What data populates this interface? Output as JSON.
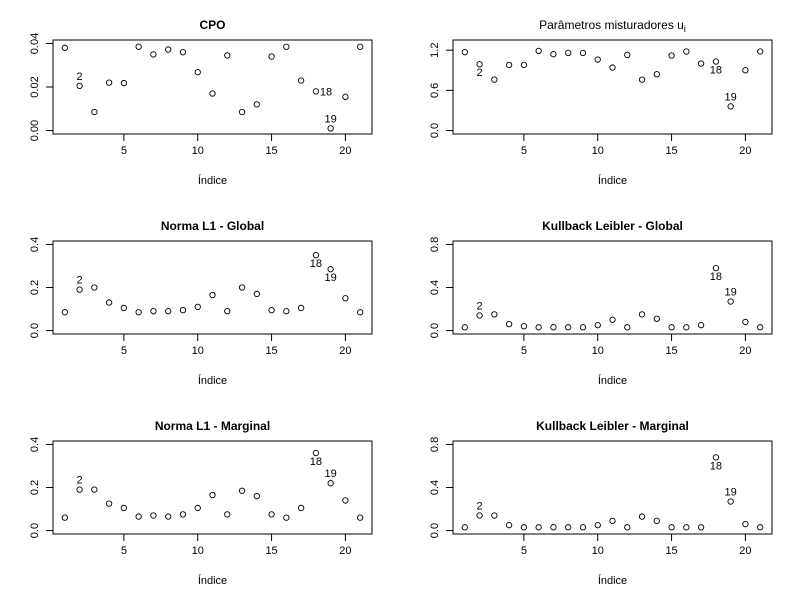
{
  "chart_data": [
    {
      "type": "scatter",
      "title": "CPO",
      "title_bold": true,
      "xlabel": "Índice",
      "ylabel": "",
      "xlim": [
        1,
        21
      ],
      "ylim": [
        0,
        0.04
      ],
      "xticks": [
        5,
        10,
        15,
        20
      ],
      "yticks": [
        0.0,
        0.02,
        0.04
      ],
      "ytick_labels": [
        "0.00",
        "0.02",
        "0.04"
      ],
      "x": [
        1,
        2,
        3,
        4,
        5,
        6,
        7,
        8,
        9,
        10,
        11,
        12,
        13,
        14,
        15,
        16,
        17,
        18,
        19,
        20,
        21
      ],
      "y": [
        0.038,
        0.0205,
        0.0085,
        0.022,
        0.0218,
        0.0385,
        0.035,
        0.0372,
        0.036,
        0.0268,
        0.017,
        0.0345,
        0.0085,
        0.012,
        0.034,
        0.0385,
        0.023,
        0.018,
        0.001,
        0.0155,
        0.0385
      ],
      "annotations": [
        {
          "text": "2",
          "x": 2,
          "pos": "above"
        },
        {
          "text": "18",
          "x": 18,
          "pos": "right"
        },
        {
          "text": "19",
          "x": 19,
          "pos": "above"
        }
      ]
    },
    {
      "type": "scatter",
      "title": "Parâmetros misturadores u",
      "title_subscript": "i",
      "title_bold": false,
      "xlabel": "Índice",
      "ylabel": "",
      "xlim": [
        1,
        21
      ],
      "ylim": [
        0,
        1.3
      ],
      "xticks": [
        5,
        10,
        15,
        20
      ],
      "yticks": [
        0.0,
        0.6,
        1.2
      ],
      "ytick_labels": [
        "0.0",
        "0.6",
        "1.2"
      ],
      "x": [
        1,
        2,
        3,
        4,
        5,
        6,
        7,
        8,
        9,
        10,
        11,
        12,
        13,
        14,
        15,
        16,
        17,
        18,
        19,
        20,
        21
      ],
      "y": [
        1.17,
        0.99,
        0.76,
        0.98,
        0.98,
        1.19,
        1.14,
        1.16,
        1.16,
        1.06,
        0.94,
        1.13,
        0.76,
        0.84,
        1.12,
        1.18,
        1.0,
        1.03,
        0.36,
        0.9,
        1.18
      ],
      "annotations": [
        {
          "text": "2",
          "x": 2,
          "pos": "below"
        },
        {
          "text": "18",
          "x": 18,
          "pos": "below"
        },
        {
          "text": "19",
          "x": 19,
          "pos": "above"
        }
      ]
    },
    {
      "type": "scatter",
      "title": "Norma L1 - Global",
      "title_bold": true,
      "xlabel": "Índice",
      "ylabel": "",
      "xlim": [
        1,
        21
      ],
      "ylim": [
        0,
        0.4
      ],
      "xticks": [
        5,
        10,
        15,
        20
      ],
      "yticks": [
        0.0,
        0.2,
        0.4
      ],
      "ytick_labels": [
        "0.0",
        "0.2",
        "0.4"
      ],
      "x": [
        1,
        2,
        3,
        4,
        5,
        6,
        7,
        8,
        9,
        10,
        11,
        12,
        13,
        14,
        15,
        16,
        17,
        18,
        19,
        20,
        21
      ],
      "y": [
        0.085,
        0.19,
        0.2,
        0.13,
        0.105,
        0.085,
        0.09,
        0.09,
        0.095,
        0.11,
        0.165,
        0.09,
        0.2,
        0.17,
        0.095,
        0.09,
        0.105,
        0.35,
        0.285,
        0.15,
        0.085
      ],
      "annotations": [
        {
          "text": "2",
          "x": 2,
          "pos": "above"
        },
        {
          "text": "18",
          "x": 18,
          "pos": "below"
        },
        {
          "text": "19",
          "x": 19,
          "pos": "below"
        }
      ]
    },
    {
      "type": "scatter",
      "title": "Kullback Leibler - Global",
      "title_bold": true,
      "xlabel": "Índice",
      "ylabel": "",
      "xlim": [
        1,
        21
      ],
      "ylim": [
        0,
        0.8
      ],
      "xticks": [
        5,
        10,
        15,
        20
      ],
      "yticks": [
        0.0,
        0.4,
        0.8
      ],
      "ytick_labels": [
        "0.0",
        "0.4",
        "0.8"
      ],
      "x": [
        1,
        2,
        3,
        4,
        5,
        6,
        7,
        8,
        9,
        10,
        11,
        12,
        13,
        14,
        15,
        16,
        17,
        18,
        19,
        20,
        21
      ],
      "y": [
        0.03,
        0.14,
        0.15,
        0.06,
        0.04,
        0.03,
        0.03,
        0.03,
        0.03,
        0.05,
        0.1,
        0.03,
        0.15,
        0.11,
        0.03,
        0.03,
        0.05,
        0.58,
        0.27,
        0.08,
        0.03
      ],
      "annotations": [
        {
          "text": "2",
          "x": 2,
          "pos": "above"
        },
        {
          "text": "18",
          "x": 18,
          "pos": "below"
        },
        {
          "text": "19",
          "x": 19,
          "pos": "above"
        }
      ]
    },
    {
      "type": "scatter",
      "title": "Norma L1 - Marginal",
      "title_bold": true,
      "xlabel": "Índice",
      "ylabel": "",
      "xlim": [
        1,
        21
      ],
      "ylim": [
        0,
        0.4
      ],
      "xticks": [
        5,
        10,
        15,
        20
      ],
      "yticks": [
        0.0,
        0.2,
        0.4
      ],
      "ytick_labels": [
        "0.0",
        "0.2",
        "0.4"
      ],
      "x": [
        1,
        2,
        3,
        4,
        5,
        6,
        7,
        8,
        9,
        10,
        11,
        12,
        13,
        14,
        15,
        16,
        17,
        18,
        19,
        20,
        21
      ],
      "y": [
        0.06,
        0.19,
        0.19,
        0.125,
        0.105,
        0.065,
        0.07,
        0.065,
        0.075,
        0.105,
        0.165,
        0.075,
        0.185,
        0.16,
        0.075,
        0.06,
        0.105,
        0.36,
        0.22,
        0.14,
        0.06
      ],
      "annotations": [
        {
          "text": "2",
          "x": 2,
          "pos": "above"
        },
        {
          "text": "18",
          "x": 18,
          "pos": "below"
        },
        {
          "text": "19",
          "x": 19,
          "pos": "above"
        }
      ]
    },
    {
      "type": "scatter",
      "title": "Kullback Leibler - Marginal",
      "title_bold": true,
      "xlabel": "Índice",
      "ylabel": "",
      "xlim": [
        1,
        21
      ],
      "ylim": [
        0,
        0.8
      ],
      "xticks": [
        5,
        10,
        15,
        20
      ],
      "yticks": [
        0.0,
        0.4,
        0.8
      ],
      "ytick_labels": [
        "0.0",
        "0.4",
        "0.8"
      ],
      "x": [
        1,
        2,
        3,
        4,
        5,
        6,
        7,
        8,
        9,
        10,
        11,
        12,
        13,
        14,
        15,
        16,
        17,
        18,
        19,
        20,
        21
      ],
      "y": [
        0.03,
        0.14,
        0.14,
        0.05,
        0.03,
        0.03,
        0.03,
        0.03,
        0.03,
        0.05,
        0.09,
        0.03,
        0.13,
        0.09,
        0.03,
        0.03,
        0.03,
        0.68,
        0.27,
        0.06,
        0.03
      ],
      "annotations": [
        {
          "text": "2",
          "x": 2,
          "pos": "above"
        },
        {
          "text": "18",
          "x": 18,
          "pos": "below"
        },
        {
          "text": "19",
          "x": 19,
          "pos": "above"
        }
      ]
    }
  ]
}
